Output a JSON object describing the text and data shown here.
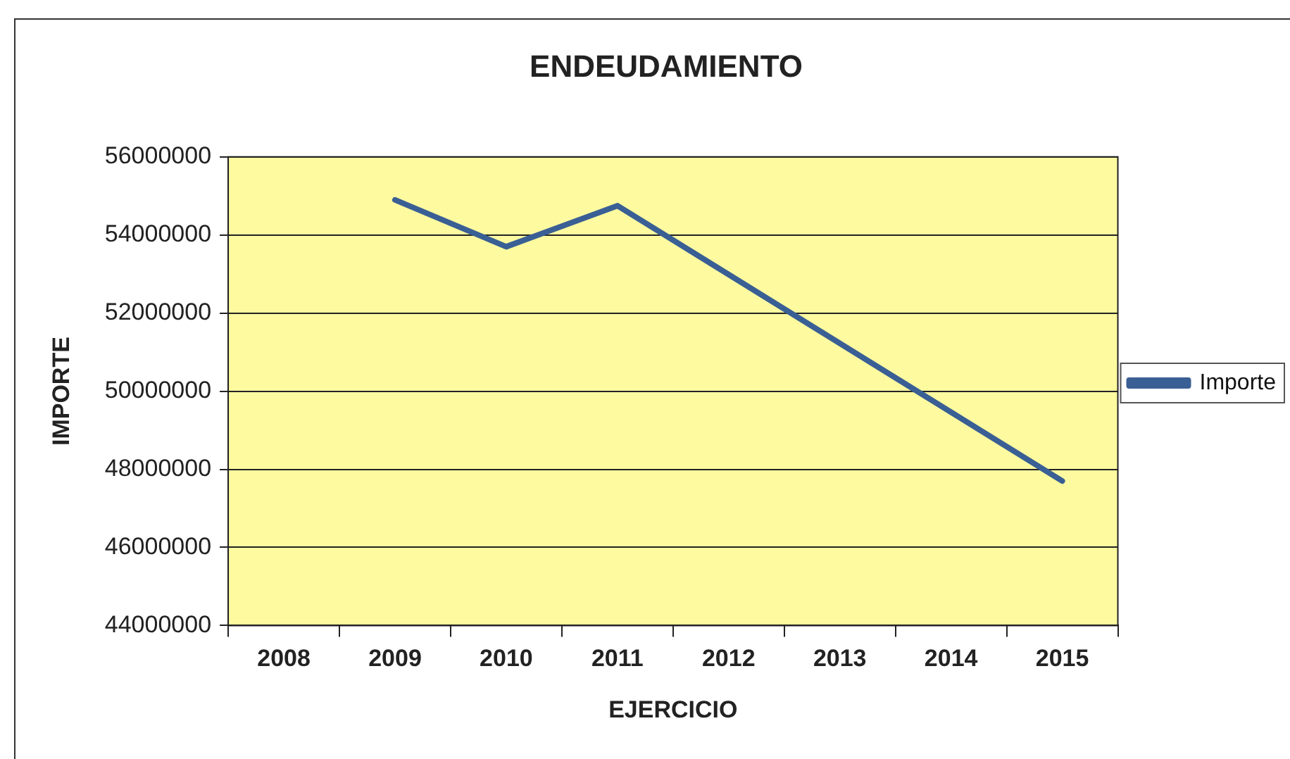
{
  "chart_data": {
    "type": "line",
    "title": "ENDEUDAMIENTO",
    "xlabel": "EJERCICIO",
    "ylabel": "IMPORTE",
    "categories": [
      "2008",
      "2009",
      "2010",
      "2011",
      "2012",
      "2013",
      "2014",
      "2015"
    ],
    "series": [
      {
        "name": "Importe",
        "color": "#3a5f94",
        "values": [
          null,
          54900000,
          53700000,
          54750000,
          null,
          null,
          null,
          47700000
        ]
      }
    ],
    "ylim": [
      44000000,
      56000000
    ],
    "yticks": [
      44000000,
      46000000,
      48000000,
      50000000,
      52000000,
      54000000,
      56000000
    ],
    "grid": "y",
    "legend": "right",
    "marker": "none",
    "line_style": "solid"
  }
}
